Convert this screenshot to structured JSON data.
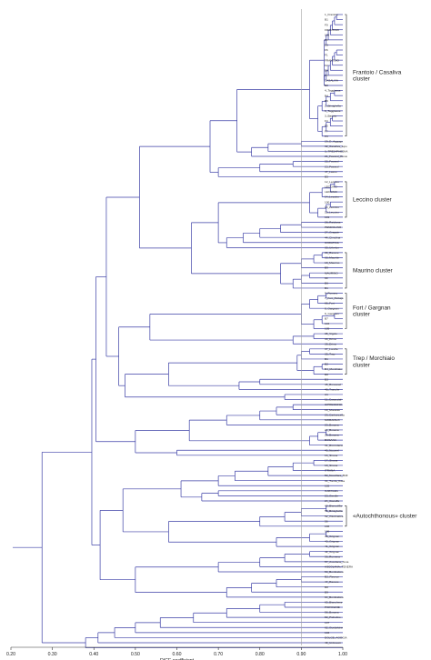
{
  "axis": {
    "label": "DICE coefficient",
    "ticks": [
      "0.20",
      "0.30",
      "0.40",
      "0.50",
      "0.60",
      "0.70",
      "0.80",
      "0.90",
      "1.00"
    ],
    "tick_values": [
      0.2,
      0.3,
      0.4,
      0.5,
      0.6,
      0.7,
      0.8,
      0.9,
      1.0
    ],
    "range": [
      0.2,
      1.0
    ],
    "threshold": 0.9
  },
  "leaves": [
    "1_Frantoio",
    "B1",
    "F0",
    "FRANTOIO",
    "103",
    "F8",
    "B3",
    "F6",
    "F1",
    "FRANTOIO",
    "F2",
    "B3",
    "F3",
    "CASALIVA",
    "B2",
    "4_Taggiasca",
    "B4",
    "B6",
    "2_Brisighella",
    "6_Taggiasca",
    "3_Barjoto",
    "F4",
    "F5",
    "F7",
    "F3",
    "29_D_Aggogo",
    "32_Casaliva_tupo",
    "3_TRE24PHE5HA",
    "21_Favarol_Rosio",
    "22_Favarol",
    "23_Favarol",
    "47_Lasso",
    "B5",
    "12_Leccino",
    "LECCINO",
    "LECCINO",
    "14_Leccino",
    "100",
    "13_Leccino",
    "15_Leccino",
    "101",
    "28_Raiolana",
    "PENDOLINO",
    "27_Grappin",
    "44_Cimolina",
    "CORATINA",
    "30_Urbelon",
    "36_Ravece",
    "33_Mauritin",
    "18_Maurino",
    "B9",
    "MAURINO",
    "90",
    "B6",
    "B1",
    "9_Pomery",
    "7_Fort_Rebaja",
    "66_Fort",
    "8_Gargnan",
    "9_Gargnan",
    "B7",
    "104",
    "105",
    "35_Vigolo",
    "38_Drina",
    "39_Drina",
    "37_Lorella",
    "35_Trep",
    "B1",
    "B2",
    "B4_Morchiaio",
    "B8",
    "B3",
    "45_Rossanel",
    "48_Tranche",
    "A1",
    "11_Casaccial",
    "CIPRESSINO",
    "19_Moraiolo",
    "26_Carboncella",
    "MORAIOLO",
    "20_Bosana",
    "24_Bosana",
    "25_Bosana",
    "BOSANA",
    "31_Roccolana",
    "46_Nocerel",
    "16_Strana",
    "17_Strana",
    "18_Strana",
    "ITRANA",
    "50_Nocellara_BdF",
    "34_Tonda_Iblea",
    "102",
    "CAROLEA",
    "23_Gentile",
    "24_Giaraffa",
    "43_Biancolilla",
    "55_Brisighella",
    "52_Ottobratica",
    "56",
    "106",
    "108",
    "38_Grignan",
    "40_Grignan",
    "41_Grignan",
    "42_Grignan",
    "56_Rumena",
    "57_Ascolana_Tena",
    "ASCOLANA_TENERA",
    "53_Bombalone",
    "B2_Ravece",
    "47_Ravece",
    "B8",
    "B9",
    "64_Bombalone",
    "65_Bianchera",
    "PICHOLINE",
    "58_Bosana",
    "59_Picholine",
    "107",
    "62_Gordalvine",
    "103",
    "DOLCE_AGOGIA",
    "49_Unknown"
  ],
  "clusters": [
    {
      "label": "Frantoio / Casaliva\ncluster"
    },
    {
      "label": "Leccino cluster"
    },
    {
      "label": "Maurino cluster"
    },
    {
      "label": "Fort / Gargnan\ncluster"
    },
    {
      "label": "Trep / Morchiaio\ncluster"
    },
    {
      "label": "«Autochthonous» cluster"
    }
  ],
  "colors": {
    "branch": "#3b3fa6",
    "threshold": "#a0a0a0"
  }
}
